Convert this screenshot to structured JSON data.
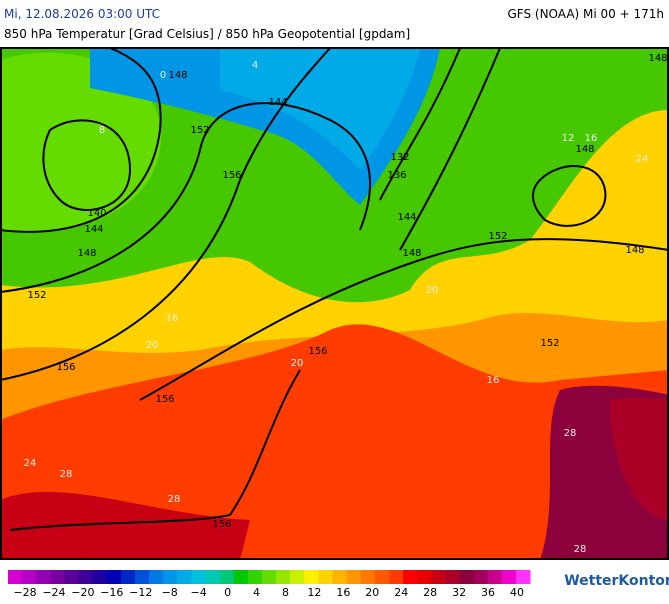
{
  "header": {
    "title": "Mi, 12.08.2026 03:00 UTC",
    "model": "GFS (NOAA) Mi 00 + 171h",
    "subtitle": "850 hPa Temperatur [Grad Celsius] / 850 hPa Geopotential [gpdam]"
  },
  "map": {
    "isobar_labels": [
      "148",
      "144",
      "152",
      "156",
      "140",
      "144",
      "148",
      "152",
      "156",
      "156",
      "156",
      "156",
      "136",
      "132",
      "144",
      "148",
      "152",
      "148",
      "148",
      "148",
      "152"
    ],
    "isotherm_labels": [
      "0",
      "4",
      "8",
      "16",
      "20",
      "20",
      "24",
      "28",
      "28",
      "28",
      "28",
      "24",
      "16",
      "20",
      "12",
      "16"
    ]
  },
  "legend": {
    "labels": [
      "−28",
      "−24",
      "−20",
      "−16",
      "−12",
      "−8",
      "−4",
      "0",
      "4",
      "8",
      "12",
      "16",
      "20",
      "24",
      "28",
      "32",
      "36",
      "40"
    ],
    "colors": [
      "#d400d4",
      "#b400c8",
      "#9600b4",
      "#7800a0",
      "#5a0096",
      "#3c0096",
      "#1e00a0",
      "#0000b4",
      "#0028c8",
      "#0050dc",
      "#0078e6",
      "#0096e6",
      "#00aae6",
      "#00bedc",
      "#00c8b4",
      "#00c878",
      "#00c800",
      "#32d200",
      "#64dc00",
      "#96e600",
      "#c8f000",
      "#fff000",
      "#ffd200",
      "#ffb400",
      "#ff9600",
      "#ff7800",
      "#ff5a00",
      "#ff3c00",
      "#ff0000",
      "#e60000",
      "#c80014",
      "#aa0028",
      "#8c003c",
      "#a0005a",
      "#c8008c",
      "#f000c8",
      "#ff32ff"
    ],
    "brand": "WetterKontor"
  }
}
